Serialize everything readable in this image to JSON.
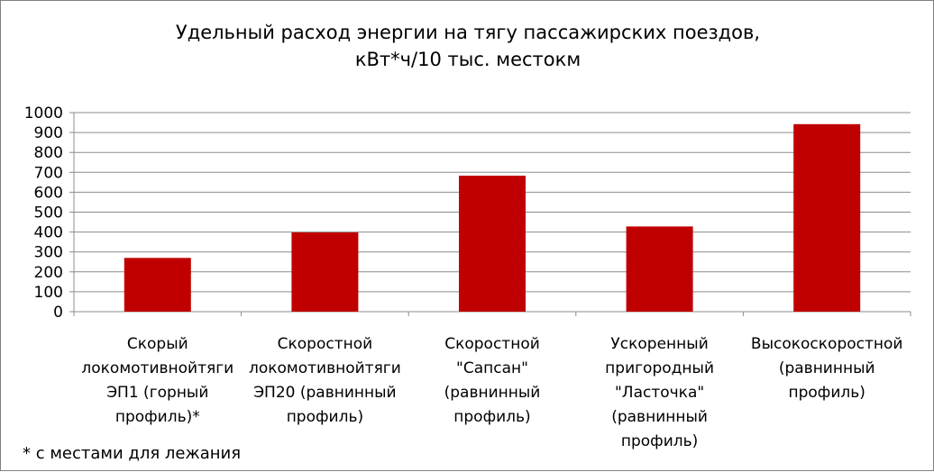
{
  "chart_data": {
    "type": "bar",
    "title": [
      "Удельный расход энергии на тягу пассажирских поездов,",
      "кВт*ч/10 тыс. местокм"
    ],
    "categories": [
      [
        "Скорый",
        "локомотивнойтяги",
        "ЭП1  (горный",
        "профиль)*"
      ],
      [
        "Скоростной",
        "локомотивнойтяги",
        "ЭП20 (равнинный",
        "профиль)"
      ],
      [
        "Скоростной",
        "\"Сапсан\"",
        "(равнинный",
        "профиль)"
      ],
      [
        "Ускоренный",
        "пригородный",
        "\"Ласточка\"",
        "(равнинный",
        "профиль)"
      ],
      [
        "Высокоскоростной",
        "(равнинный",
        "профиль)"
      ]
    ],
    "values": [
      270,
      398,
      683,
      428,
      942
    ],
    "ylim": [
      0,
      1000
    ],
    "yticks": [
      "0",
      "100",
      "200",
      "300",
      "400",
      "500",
      "600",
      "700",
      "800",
      "900",
      "1000"
    ],
    "grid": true,
    "legend": "none",
    "bar_color": "#C00000",
    "footnote": "* с местами для лежания"
  }
}
